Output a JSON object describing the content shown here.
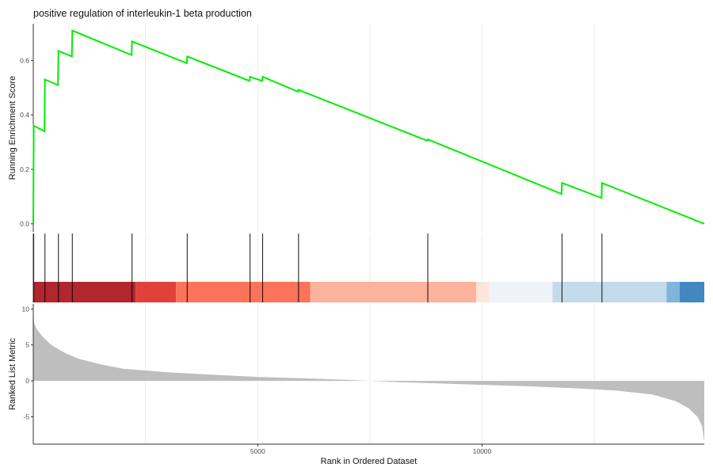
{
  "chart_data": {
    "type": "line",
    "title": "positive regulation of interleukin-1 beta production",
    "xlabel": "Rank in Ordered Dataset",
    "xlim": [
      0,
      14950
    ],
    "x_ticks": [
      5000,
      10000
    ],
    "x_grid": [
      2500,
      5000,
      7500,
      10000,
      12500
    ],
    "colors": {
      "curve": "#00ee00",
      "hits": "#000000",
      "metric_fill": "#bebebe",
      "grid": "#ebebeb"
    },
    "running_score": {
      "ylabel": "Running Enrichment Score",
      "ylim": [
        -0.03,
        0.735
      ],
      "y_ticks": [
        0.0,
        0.2,
        0.4,
        0.6
      ],
      "y_tick_labels": [
        "0.0",
        "0.2",
        "0.4",
        "0.6"
      ],
      "points": [
        [
          0,
          0.0
        ],
        [
          10,
          0.36
        ],
        [
          250,
          0.34
        ],
        [
          260,
          0.53
        ],
        [
          550,
          0.51
        ],
        [
          560,
          0.635
        ],
        [
          860,
          0.615
        ],
        [
          870,
          0.71
        ],
        [
          2190,
          0.62
        ],
        [
          2200,
          0.67
        ],
        [
          3420,
          0.59
        ],
        [
          3430,
          0.615
        ],
        [
          4820,
          0.525
        ],
        [
          4830,
          0.54
        ],
        [
          5100,
          0.525
        ],
        [
          5110,
          0.54
        ],
        [
          5900,
          0.485
        ],
        [
          5910,
          0.492
        ],
        [
          8780,
          0.305
        ],
        [
          8790,
          0.31
        ],
        [
          11770,
          0.11
        ],
        [
          11780,
          0.15
        ],
        [
          12660,
          0.095
        ],
        [
          12670,
          0.15
        ],
        [
          14950,
          0.0
        ]
      ]
    },
    "gene_hits": [
      10,
      260,
      560,
      870,
      2200,
      3430,
      4830,
      5110,
      5910,
      8790,
      11780,
      12670
    ],
    "heatmap_bands": [
      {
        "start": 0,
        "end": 2280,
        "color": "#b2262d"
      },
      {
        "start": 2280,
        "end": 3180,
        "color": "#e2413a"
      },
      {
        "start": 3180,
        "end": 6170,
        "color": "#fb735a"
      },
      {
        "start": 6170,
        "end": 9870,
        "color": "#fdb39b"
      },
      {
        "start": 9870,
        "end": 10160,
        "color": "#fde5da"
      },
      {
        "start": 10160,
        "end": 11570,
        "color": "#eef3fa"
      },
      {
        "start": 11570,
        "end": 14110,
        "color": "#c2dae9"
      },
      {
        "start": 14110,
        "end": 14400,
        "color": "#7db6da"
      },
      {
        "start": 14400,
        "end": 14950,
        "color": "#4187c2"
      }
    ],
    "ranked_metric": {
      "ylabel": "Ranked List Metric",
      "ylim": [
        -8.8,
        10.7
      ],
      "y_ticks": [
        -5,
        0,
        5,
        10
      ],
      "y_tick_labels": [
        "-5",
        "0",
        "5",
        "10"
      ],
      "curve": [
        [
          0,
          10.1
        ],
        [
          20,
          8.0
        ],
        [
          80,
          7.2
        ],
        [
          200,
          6.2
        ],
        [
          400,
          5.0
        ],
        [
          700,
          3.9
        ],
        [
          1000,
          3.1
        ],
        [
          1500,
          2.3
        ],
        [
          2000,
          1.7
        ],
        [
          3000,
          1.2
        ],
        [
          4000,
          0.85
        ],
        [
          5000,
          0.55
        ],
        [
          6000,
          0.35
        ],
        [
          7000,
          0.15
        ],
        [
          7500,
          0.0
        ],
        [
          8000,
          -0.15
        ],
        [
          9000,
          -0.35
        ],
        [
          10000,
          -0.55
        ],
        [
          11000,
          -0.75
        ],
        [
          12000,
          -1.0
        ],
        [
          13000,
          -1.35
        ],
        [
          13800,
          -1.9
        ],
        [
          14300,
          -2.8
        ],
        [
          14600,
          -3.8
        ],
        [
          14800,
          -5.0
        ],
        [
          14900,
          -6.3
        ],
        [
          14950,
          -8.5
        ]
      ]
    }
  }
}
